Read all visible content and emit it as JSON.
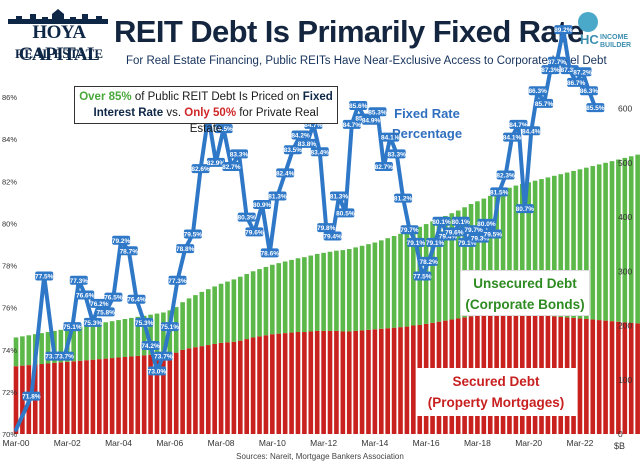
{
  "header": {
    "logo_line1": "HOYA CAPITAL",
    "logo_line2": "REAL ESTATE",
    "title": "REIT Debt Is Primarily Fixed Rate",
    "subtitle": "For Real Estate Financing, Public REITs Have Near-Exclusive Access to Corporate-Level Debt",
    "hc_letters": "HC",
    "hc_word1": "INCOME",
    "hc_word2": "BUILDER"
  },
  "callout": {
    "p1": "Over 85%",
    "p2": " of Public REIT Debt Is Priced on ",
    "p3": "Fixed",
    "p4": "Interest Rate",
    "p5": " vs. ",
    "p6": "Only 50%",
    "p7": " for Private Real Estate"
  },
  "labels": {
    "fixed_rate_1": "Fixed Rate",
    "fixed_rate_2": "Percentage",
    "unsecured_1": "Unsecured Debt",
    "unsecured_2": "(Corporate Bonds)",
    "secured_1": "Secured Debt",
    "secured_2": "(Property Mortgages)",
    "source": "Sources: Nareit, Mortgage Bankers Association",
    "unit": "$B"
  },
  "colors": {
    "secured": "#c9211e",
    "unsecured": "#5cb848",
    "fixed_line": "#2f78c8",
    "marker_fill": "#2f78c8",
    "label_text": "#ffffff"
  },
  "chart_data": {
    "type": "bar",
    "title": "REIT Debt Is Primarily Fixed Rate",
    "x_tick_labels": [
      "Mar-00",
      "Mar-02",
      "Mar-04",
      "Mar-06",
      "Mar-08",
      "Mar-10",
      "Mar-12",
      "Mar-14",
      "Mar-16",
      "Mar-18",
      "Mar-20",
      "Mar-22"
    ],
    "x_range": [
      2000.0,
      2023.25
    ],
    "left_axis": {
      "ticks": [
        "70%",
        "72%",
        "74%",
        "76%",
        "78%",
        "80%",
        "82%",
        "84%",
        "86%"
      ],
      "range": [
        70,
        87
      ]
    },
    "right_axis": {
      "ticks": [
        "0",
        "100",
        "200",
        "300",
        "400",
        "500",
        "600"
      ],
      "range": [
        0,
        660
      ],
      "unit": "$B"
    },
    "bar_start": 2000.0,
    "bar_step": 0.25,
    "secured": [
      125,
      126,
      127,
      128,
      129,
      130,
      131,
      132,
      133,
      134,
      135,
      136,
      137,
      138,
      139,
      140,
      141,
      142,
      143,
      144,
      145,
      146,
      147,
      148,
      148,
      150,
      155,
      158,
      160,
      162,
      164,
      166,
      168,
      169,
      170,
      172,
      175,
      178,
      180,
      182,
      184,
      185,
      186,
      187,
      188,
      188,
      189,
      190,
      190,
      190,
      190,
      189,
      189,
      190,
      191,
      192,
      193,
      194,
      195,
      196,
      197,
      198,
      200,
      201,
      203,
      205,
      207,
      209,
      211,
      213,
      215,
      217,
      218,
      219,
      220,
      221,
      222,
      223,
      223,
      222,
      221,
      220,
      219,
      218,
      217,
      216,
      215,
      214,
      213,
      212,
      211,
      210,
      209,
      208,
      207,
      206,
      205,
      204,
      203,
      202,
      201,
      200,
      199,
      198,
      197,
      196,
      195,
      194,
      193,
      192,
      191,
      190,
      189,
      188,
      187,
      186,
      185,
      184,
      183,
      182,
      181,
      180,
      179,
      180,
      181,
      182,
      183,
      184,
      185,
      186,
      187,
      188,
      189
    ],
    "unsecured": [
      53,
      54,
      55,
      56,
      57,
      58,
      59,
      60,
      61,
      62,
      63,
      64,
      65,
      66,
      67,
      68,
      69,
      70,
      71,
      72,
      73,
      74,
      75,
      76,
      80,
      84,
      88,
      92,
      96,
      100,
      103,
      106,
      109,
      112,
      115,
      118,
      120,
      122,
      124,
      126,
      128,
      130,
      132,
      134,
      136,
      138,
      140,
      142,
      144,
      146,
      148,
      150,
      152,
      154,
      156,
      158,
      160,
      163,
      166,
      169,
      172,
      175,
      178,
      181,
      184,
      187,
      190,
      193,
      196,
      199,
      203,
      207,
      211,
      215,
      219,
      223,
      227,
      231,
      235,
      239,
      243,
      247,
      251,
      255,
      259,
      263,
      267,
      271,
      275,
      279,
      283,
      287,
      291,
      295,
      299,
      303,
      307,
      311,
      315,
      319,
      323,
      327,
      331,
      335,
      339,
      343,
      347,
      351,
      355,
      359,
      363,
      367,
      371,
      375,
      379,
      383,
      387,
      391,
      395,
      399,
      403,
      407,
      411,
      415,
      419,
      423,
      427,
      431,
      435,
      439,
      443,
      447,
      451
    ],
    "series_fixed_rate": [
      {
        "x": 2000.0,
        "y": 70.2,
        "label": ""
      },
      {
        "x": 2000.6,
        "y": 71.8,
        "label": "71.8%"
      },
      {
        "x": 2001.1,
        "y": 77.5,
        "label": "77.5%"
      },
      {
        "x": 2001.5,
        "y": 73.7,
        "label": "73.7%"
      },
      {
        "x": 2001.9,
        "y": 73.7,
        "label": "73.7%"
      },
      {
        "x": 2002.2,
        "y": 75.1,
        "label": "75.1%"
      },
      {
        "x": 2002.45,
        "y": 77.3,
        "label": "77.3%"
      },
      {
        "x": 2002.7,
        "y": 76.6,
        "label": "76.6%"
      },
      {
        "x": 2003.0,
        "y": 75.3,
        "label": "75.3%"
      },
      {
        "x": 2003.25,
        "y": 76.2,
        "label": "76.2%"
      },
      {
        "x": 2003.5,
        "y": 75.8,
        "label": "75.8%"
      },
      {
        "x": 2003.8,
        "y": 76.5,
        "label": "76.5%"
      },
      {
        "x": 2004.1,
        "y": 79.2,
        "label": "79.2%"
      },
      {
        "x": 2004.4,
        "y": 78.7,
        "label": "78.7%"
      },
      {
        "x": 2004.7,
        "y": 76.4,
        "label": "76.4%"
      },
      {
        "x": 2005.0,
        "y": 75.3,
        "label": "75.3%"
      },
      {
        "x": 2005.25,
        "y": 74.2,
        "label": "74.2%"
      },
      {
        "x": 2005.5,
        "y": 73.0,
        "label": "73.0%"
      },
      {
        "x": 2005.75,
        "y": 73.7,
        "label": "73.7%"
      },
      {
        "x": 2006.0,
        "y": 75.1,
        "label": "75.1%"
      },
      {
        "x": 2006.3,
        "y": 77.3,
        "label": "77.3%"
      },
      {
        "x": 2006.6,
        "y": 78.8,
        "label": "78.8%"
      },
      {
        "x": 2006.9,
        "y": 79.5,
        "label": "79.5%"
      },
      {
        "x": 2007.2,
        "y": 82.6,
        "label": "82.6%"
      },
      {
        "x": 2007.5,
        "y": 85.1,
        "label": "85.1%"
      },
      {
        "x": 2007.8,
        "y": 82.9,
        "label": "82.9%"
      },
      {
        "x": 2008.1,
        "y": 84.5,
        "label": "84.5%"
      },
      {
        "x": 2008.4,
        "y": 82.7,
        "label": "82.7%"
      },
      {
        "x": 2008.7,
        "y": 83.3,
        "label": "83.3%"
      },
      {
        "x": 2009.0,
        "y": 80.3,
        "label": "80.3%"
      },
      {
        "x": 2009.3,
        "y": 79.6,
        "label": "79.6%"
      },
      {
        "x": 2009.6,
        "y": 80.9,
        "label": "80.9%"
      },
      {
        "x": 2009.9,
        "y": 78.6,
        "label": "78.6%"
      },
      {
        "x": 2010.2,
        "y": 81.3,
        "label": "81.3%"
      },
      {
        "x": 2010.5,
        "y": 82.4,
        "label": "82.4%"
      },
      {
        "x": 2010.8,
        "y": 83.5,
        "label": "83.5%"
      },
      {
        "x": 2011.1,
        "y": 84.2,
        "label": "84.2%"
      },
      {
        "x": 2011.35,
        "y": 83.8,
        "label": "83.8%"
      },
      {
        "x": 2011.6,
        "y": 84.7,
        "label": "84.7%"
      },
      {
        "x": 2011.85,
        "y": 83.4,
        "label": "83.4%"
      },
      {
        "x": 2012.1,
        "y": 79.8,
        "label": "79.8%"
      },
      {
        "x": 2012.35,
        "y": 79.4,
        "label": "79.4%"
      },
      {
        "x": 2012.6,
        "y": 81.3,
        "label": "81.3%"
      },
      {
        "x": 2012.85,
        "y": 80.5,
        "label": "80.5%"
      },
      {
        "x": 2013.1,
        "y": 84.7,
        "label": "84.7%"
      },
      {
        "x": 2013.35,
        "y": 85.6,
        "label": "85.6%"
      },
      {
        "x": 2013.6,
        "y": 85.0,
        "label": "85.0%"
      },
      {
        "x": 2013.85,
        "y": 84.9,
        "label": "84.9%"
      },
      {
        "x": 2014.1,
        "y": 85.3,
        "label": "85.3%"
      },
      {
        "x": 2014.35,
        "y": 82.7,
        "label": "82.7%"
      },
      {
        "x": 2014.6,
        "y": 84.1,
        "label": "84.1%"
      },
      {
        "x": 2014.85,
        "y": 83.3,
        "label": "83.3%"
      },
      {
        "x": 2015.1,
        "y": 81.2,
        "label": "81.2%"
      },
      {
        "x": 2015.35,
        "y": 79.7,
        "label": "79.7%"
      },
      {
        "x": 2015.6,
        "y": 79.1,
        "label": "79.1%"
      },
      {
        "x": 2015.85,
        "y": 77.5,
        "label": "77.5%"
      },
      {
        "x": 2016.1,
        "y": 78.2,
        "label": "78.2%"
      },
      {
        "x": 2016.35,
        "y": 79.1,
        "label": "79.1%"
      },
      {
        "x": 2016.6,
        "y": 80.1,
        "label": "80.1%"
      },
      {
        "x": 2016.85,
        "y": 79.4,
        "label": "79.4%"
      },
      {
        "x": 2017.1,
        "y": 79.6,
        "label": "79.6%"
      },
      {
        "x": 2017.35,
        "y": 80.1,
        "label": "80.1%"
      },
      {
        "x": 2017.6,
        "y": 79.1,
        "label": "79.1%"
      },
      {
        "x": 2017.85,
        "y": 79.7,
        "label": "79.7%"
      },
      {
        "x": 2018.1,
        "y": 79.3,
        "label": "79.3%"
      },
      {
        "x": 2018.35,
        "y": 80.0,
        "label": "80.0%"
      },
      {
        "x": 2018.6,
        "y": 79.5,
        "label": "79.5%"
      },
      {
        "x": 2018.85,
        "y": 81.5,
        "label": "81.5%"
      },
      {
        "x": 2019.1,
        "y": 82.3,
        "label": "82.3%"
      },
      {
        "x": 2019.35,
        "y": 84.1,
        "label": "84.1%"
      },
      {
        "x": 2019.6,
        "y": 84.7,
        "label": "84.7%"
      },
      {
        "x": 2019.85,
        "y": 80.7,
        "label": "80.7%"
      },
      {
        "x": 2020.1,
        "y": 84.4,
        "label": "84.4%"
      },
      {
        "x": 2020.35,
        "y": 86.3,
        "label": "86.3%"
      },
      {
        "x": 2020.6,
        "y": 85.7,
        "label": "85.7%"
      },
      {
        "x": 2020.85,
        "y": 87.3,
        "label": "87.3%"
      },
      {
        "x": 2021.1,
        "y": 87.7,
        "label": "87.7%"
      },
      {
        "x": 2021.35,
        "y": 89.2,
        "label": "89.2%"
      },
      {
        "x": 2021.6,
        "y": 87.3,
        "label": "87.3%"
      },
      {
        "x": 2021.85,
        "y": 86.7,
        "label": "86.7%"
      },
      {
        "x": 2022.1,
        "y": 87.2,
        "label": "87.2%"
      },
      {
        "x": 2022.35,
        "y": 86.3,
        "label": "86.3%"
      },
      {
        "x": 2022.6,
        "y": 85.5,
        "label": "85.5%"
      }
    ]
  }
}
